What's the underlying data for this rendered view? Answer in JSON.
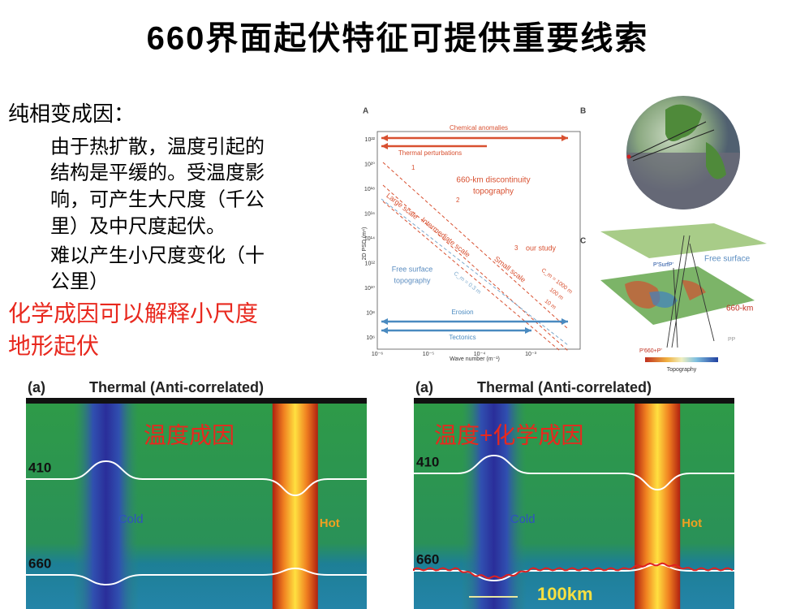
{
  "header": {
    "title": "660界面起伏特征可提供重要线索"
  },
  "body": {
    "heading": "纯相变成因：",
    "lines": [
      "由于热扩散，温度引起的",
      "结构是平缓的。受温度影",
      "响，可产生大尺度（千公",
      "里）及中尺度起伏。",
      "难以产生小尺度变化（十",
      "公里）"
    ],
    "highlight": [
      "化学成因可以解释小尺度",
      "地形起伏"
    ]
  },
  "figure": {
    "panel_a": {
      "tag": "A",
      "y_label": "2D PSD (m⁴)",
      "x_label": "Wave number (m⁻¹)",
      "yticks": [
        "10²²",
        "10²⁰",
        "10¹⁸",
        "10¹⁶",
        "10¹⁴",
        "10¹²",
        "10¹⁰",
        "10⁸",
        "10⁶"
      ],
      "xticks": [
        "10⁻⁶",
        "10⁻⁵",
        "10⁻⁴",
        "10⁻³"
      ],
      "chemical": "Chemical anomalies",
      "thermal": "Thermal perturbations",
      "topo": [
        "660-km discontinuity",
        "topography"
      ],
      "scales": [
        "Large scale",
        "Intermediate scale",
        "Small scale"
      ],
      "numbers": [
        "1",
        "2",
        "3"
      ],
      "study": "our study",
      "free": [
        "Free surface",
        "topography"
      ],
      "erosion": "Erosion",
      "tectonics": "Tectonics",
      "c_labels": [
        "C_m = 1000 m",
        "100 m",
        "10 m",
        "C_m = 0.3 m"
      ]
    },
    "panel_b": {
      "tag": "B"
    },
    "panel_c": {
      "tag": "C",
      "free": "Free surface",
      "d660": "660-km",
      "psurf": "P'SurfP'",
      "p660": "P'660+P'",
      "pp": "PP",
      "colorbar": "Topography"
    }
  },
  "panels": [
    {
      "tag": "(a)",
      "title": "Thermal (Anti-correlated)",
      "overlay": "温度成因",
      "d410": "410",
      "d660": "660",
      "cold": "Cold",
      "hot": "Hot"
    },
    {
      "tag": "(a)",
      "title": "Thermal (Anti-correlated)",
      "overlay": "温度+化学成因",
      "d410": "410",
      "d660": "660",
      "cold": "Cold",
      "hot": "Hot",
      "scale": "100km"
    }
  ]
}
